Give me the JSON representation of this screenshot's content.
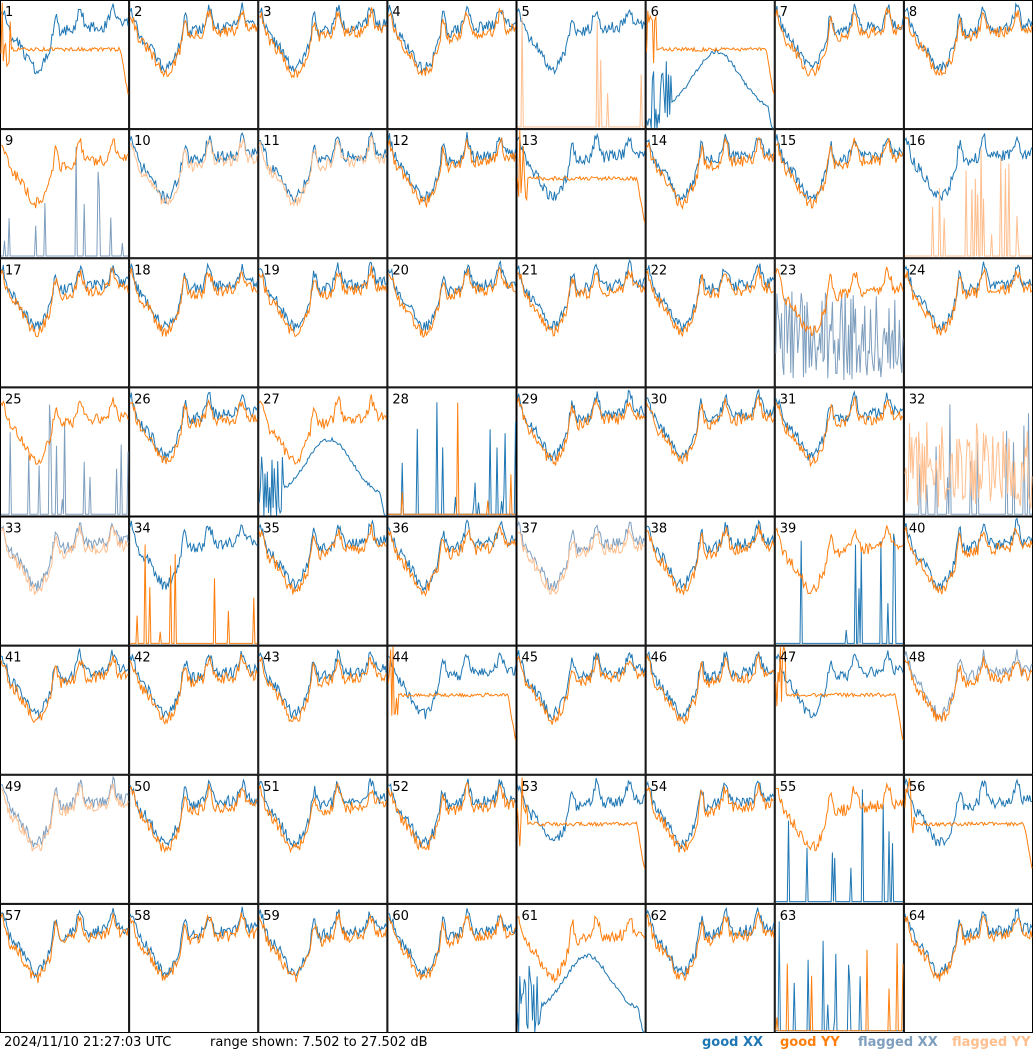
{
  "footer": {
    "timestamp": "2024/11/10 21:27:03 UTC",
    "range_text": "range shown: 7.502 to 27.502 dB"
  },
  "legend": [
    {
      "label": "good XX",
      "color": "#1f77b4"
    },
    {
      "label": "good YY",
      "color": "#ff7f0e"
    },
    {
      "label": "flagged XX",
      "color": "#7f9fbf"
    },
    {
      "label": "flagged YY",
      "color": "#ffbf8f"
    }
  ],
  "chart_data": {
    "type": "line",
    "layout": "small-multiples 8x8",
    "ylim_db": [
      7.502,
      27.502
    ],
    "panel_labels": [
      "1",
      "2",
      "3",
      "4",
      "5",
      "6",
      "7",
      "8",
      "9",
      "10",
      "11",
      "12",
      "13",
      "14",
      "15",
      "16",
      "17",
      "18",
      "19",
      "20",
      "21",
      "22",
      "23",
      "24",
      "25",
      "26",
      "27",
      "28",
      "29",
      "30",
      "31",
      "32",
      "33",
      "34",
      "35",
      "36",
      "37",
      "38",
      "39",
      "40",
      "41",
      "42",
      "43",
      "44",
      "45",
      "46",
      "47",
      "48",
      "49",
      "50",
      "51",
      "52",
      "53",
      "54",
      "55",
      "56",
      "57",
      "58",
      "59",
      "60",
      "61",
      "62",
      "63",
      "64"
    ],
    "panels": [
      {
        "id": 1,
        "xx": "good",
        "yy": "good",
        "xx_shape": "normal",
        "yy_shape": "flat"
      },
      {
        "id": 2,
        "xx": "good",
        "yy": "good",
        "xx_shape": "normal",
        "yy_shape": "normal"
      },
      {
        "id": 3,
        "xx": "good",
        "yy": "good",
        "xx_shape": "normal",
        "yy_shape": "normal"
      },
      {
        "id": 4,
        "xx": "good",
        "yy": "good",
        "xx_shape": "normal",
        "yy_shape": "normal"
      },
      {
        "id": 5,
        "xx": "good",
        "yy": "flagged",
        "xx_shape": "normal",
        "yy_shape": "spikes"
      },
      {
        "id": 6,
        "xx": "good",
        "yy": "good",
        "xx_shape": "hump",
        "yy_shape": "flat"
      },
      {
        "id": 7,
        "xx": "good",
        "yy": "good",
        "xx_shape": "normal",
        "yy_shape": "normal"
      },
      {
        "id": 8,
        "xx": "good",
        "yy": "good",
        "xx_shape": "normal",
        "yy_shape": "normal"
      },
      {
        "id": 9,
        "xx": "flagged",
        "yy": "good",
        "xx_shape": "spikes",
        "yy_shape": "normal"
      },
      {
        "id": 10,
        "xx": "good",
        "yy": "flagged",
        "xx_shape": "normal",
        "yy_shape": "normal"
      },
      {
        "id": 11,
        "xx": "good",
        "yy": "flagged",
        "xx_shape": "normal",
        "yy_shape": "normal"
      },
      {
        "id": 12,
        "xx": "good",
        "yy": "good",
        "xx_shape": "normal",
        "yy_shape": "normal"
      },
      {
        "id": 13,
        "xx": "good",
        "yy": "good",
        "xx_shape": "normal",
        "yy_shape": "flat"
      },
      {
        "id": 14,
        "xx": "good",
        "yy": "good",
        "xx_shape": "normal",
        "yy_shape": "normal"
      },
      {
        "id": 15,
        "xx": "good",
        "yy": "good",
        "xx_shape": "normal",
        "yy_shape": "normal"
      },
      {
        "id": 16,
        "xx": "good",
        "yy": "flagged",
        "xx_shape": "normal",
        "yy_shape": "spikes"
      },
      {
        "id": 17,
        "xx": "good",
        "yy": "good",
        "xx_shape": "normal",
        "yy_shape": "normal"
      },
      {
        "id": 18,
        "xx": "good",
        "yy": "good",
        "xx_shape": "normal",
        "yy_shape": "normal"
      },
      {
        "id": 19,
        "xx": "good",
        "yy": "good",
        "xx_shape": "normal",
        "yy_shape": "normal"
      },
      {
        "id": 20,
        "xx": "good",
        "yy": "good",
        "xx_shape": "normal",
        "yy_shape": "normal"
      },
      {
        "id": 21,
        "xx": "good",
        "yy": "good",
        "xx_shape": "normal",
        "yy_shape": "normal"
      },
      {
        "id": 22,
        "xx": "good",
        "yy": "good",
        "xx_shape": "normal",
        "yy_shape": "normal"
      },
      {
        "id": 23,
        "xx": "flagged",
        "yy": "good",
        "xx_shape": "noise",
        "yy_shape": "normal"
      },
      {
        "id": 24,
        "xx": "good",
        "yy": "good",
        "xx_shape": "normal",
        "yy_shape": "normal"
      },
      {
        "id": 25,
        "xx": "flagged",
        "yy": "good",
        "xx_shape": "spikes",
        "yy_shape": "normal"
      },
      {
        "id": 26,
        "xx": "good",
        "yy": "good",
        "xx_shape": "normal",
        "yy_shape": "normal"
      },
      {
        "id": 27,
        "xx": "good",
        "yy": "good",
        "xx_shape": "hump",
        "yy_shape": "normal"
      },
      {
        "id": 28,
        "xx": "good",
        "yy": "good",
        "xx_shape": "spikes",
        "yy_shape": "spikes"
      },
      {
        "id": 29,
        "xx": "good",
        "yy": "good",
        "xx_shape": "normal",
        "yy_shape": "normal"
      },
      {
        "id": 30,
        "xx": "good",
        "yy": "good",
        "xx_shape": "normal",
        "yy_shape": "normal"
      },
      {
        "id": 31,
        "xx": "good",
        "yy": "good",
        "xx_shape": "normal",
        "yy_shape": "normal"
      },
      {
        "id": 32,
        "xx": "flagged",
        "yy": "flagged",
        "xx_shape": "spikes",
        "yy_shape": "noise"
      },
      {
        "id": 33,
        "xx": "flagged",
        "yy": "flagged",
        "xx_shape": "normal",
        "yy_shape": "normal"
      },
      {
        "id": 34,
        "xx": "good",
        "yy": "good",
        "xx_shape": "normal",
        "yy_shape": "spikes"
      },
      {
        "id": 35,
        "xx": "good",
        "yy": "good",
        "xx_shape": "normal",
        "yy_shape": "normal"
      },
      {
        "id": 36,
        "xx": "good",
        "yy": "good",
        "xx_shape": "normal",
        "yy_shape": "normal"
      },
      {
        "id": 37,
        "xx": "flagged",
        "yy": "flagged",
        "xx_shape": "normal",
        "yy_shape": "normal"
      },
      {
        "id": 38,
        "xx": "good",
        "yy": "good",
        "xx_shape": "normal",
        "yy_shape": "normal"
      },
      {
        "id": 39,
        "xx": "good",
        "yy": "good",
        "xx_shape": "spikes",
        "yy_shape": "normal"
      },
      {
        "id": 40,
        "xx": "good",
        "yy": "good",
        "xx_shape": "normal",
        "yy_shape": "normal"
      },
      {
        "id": 41,
        "xx": "good",
        "yy": "good",
        "xx_shape": "normal",
        "yy_shape": "normal"
      },
      {
        "id": 42,
        "xx": "good",
        "yy": "good",
        "xx_shape": "normal",
        "yy_shape": "normal"
      },
      {
        "id": 43,
        "xx": "good",
        "yy": "good",
        "xx_shape": "normal",
        "yy_shape": "normal"
      },
      {
        "id": 44,
        "xx": "good",
        "yy": "good",
        "xx_shape": "normal",
        "yy_shape": "flat"
      },
      {
        "id": 45,
        "xx": "good",
        "yy": "good",
        "xx_shape": "normal",
        "yy_shape": "normal"
      },
      {
        "id": 46,
        "xx": "good",
        "yy": "good",
        "xx_shape": "normal",
        "yy_shape": "normal"
      },
      {
        "id": 47,
        "xx": "good",
        "yy": "good",
        "xx_shape": "normal",
        "yy_shape": "flat"
      },
      {
        "id": 48,
        "xx": "flagged",
        "yy": "good",
        "xx_shape": "normal",
        "yy_shape": "normal"
      },
      {
        "id": 49,
        "xx": "flagged",
        "yy": "flagged",
        "xx_shape": "normal",
        "yy_shape": "normal"
      },
      {
        "id": 50,
        "xx": "good",
        "yy": "good",
        "xx_shape": "normal",
        "yy_shape": "normal"
      },
      {
        "id": 51,
        "xx": "good",
        "yy": "good",
        "xx_shape": "normal",
        "yy_shape": "normal"
      },
      {
        "id": 52,
        "xx": "good",
        "yy": "good",
        "xx_shape": "normal",
        "yy_shape": "normal"
      },
      {
        "id": 53,
        "xx": "good",
        "yy": "good",
        "xx_shape": "normal",
        "yy_shape": "flat"
      },
      {
        "id": 54,
        "xx": "good",
        "yy": "good",
        "xx_shape": "normal",
        "yy_shape": "normal"
      },
      {
        "id": 55,
        "xx": "good",
        "yy": "good",
        "xx_shape": "spikes",
        "yy_shape": "normal"
      },
      {
        "id": 56,
        "xx": "good",
        "yy": "good",
        "xx_shape": "normal",
        "yy_shape": "flat"
      },
      {
        "id": 57,
        "xx": "good",
        "yy": "good",
        "xx_shape": "normal",
        "yy_shape": "normal"
      },
      {
        "id": 58,
        "xx": "good",
        "yy": "good",
        "xx_shape": "normal",
        "yy_shape": "normal"
      },
      {
        "id": 59,
        "xx": "good",
        "yy": "good",
        "xx_shape": "normal",
        "yy_shape": "normal"
      },
      {
        "id": 60,
        "xx": "good",
        "yy": "good",
        "xx_shape": "normal",
        "yy_shape": "normal"
      },
      {
        "id": 61,
        "xx": "good",
        "yy": "good",
        "xx_shape": "hump",
        "yy_shape": "normal"
      },
      {
        "id": 62,
        "xx": "good",
        "yy": "good",
        "xx_shape": "normal",
        "yy_shape": "normal"
      },
      {
        "id": 63,
        "xx": "good",
        "yy": "good",
        "xx_shape": "spikes",
        "yy_shape": "spikes"
      },
      {
        "id": 64,
        "xx": "good",
        "yy": "good",
        "xx_shape": "normal",
        "yy_shape": "normal"
      }
    ]
  }
}
